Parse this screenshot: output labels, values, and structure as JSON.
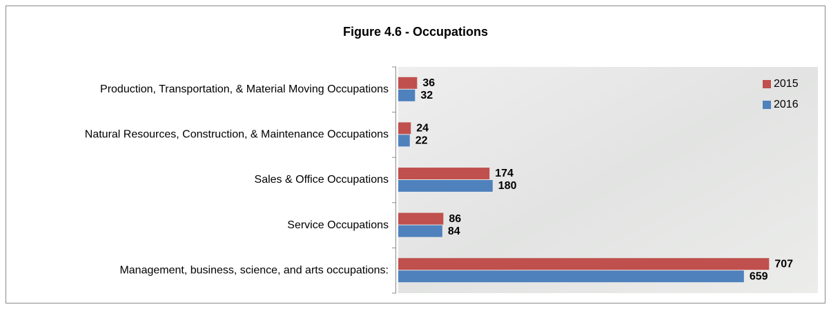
{
  "chart_data": {
    "type": "bar",
    "orientation": "horizontal",
    "title": "Figure 4.6 - Occupations",
    "categories": [
      "Production, Transportation, & Material Moving Occupations",
      "Natural Resources, Construction, & Maintenance Occupations",
      "Sales & Office Occupations",
      "Service Occupations",
      "Management, business, science, and arts occupations:"
    ],
    "series": [
      {
        "name": "2015",
        "color": "#c0504d",
        "values": [
          36,
          24,
          174,
          86,
          707
        ]
      },
      {
        "name": "2016",
        "color": "#4f81bd",
        "values": [
          32,
          22,
          180,
          84,
          659
        ]
      }
    ],
    "xlim": [
      0,
      800
    ],
    "legend": "top-right"
  }
}
